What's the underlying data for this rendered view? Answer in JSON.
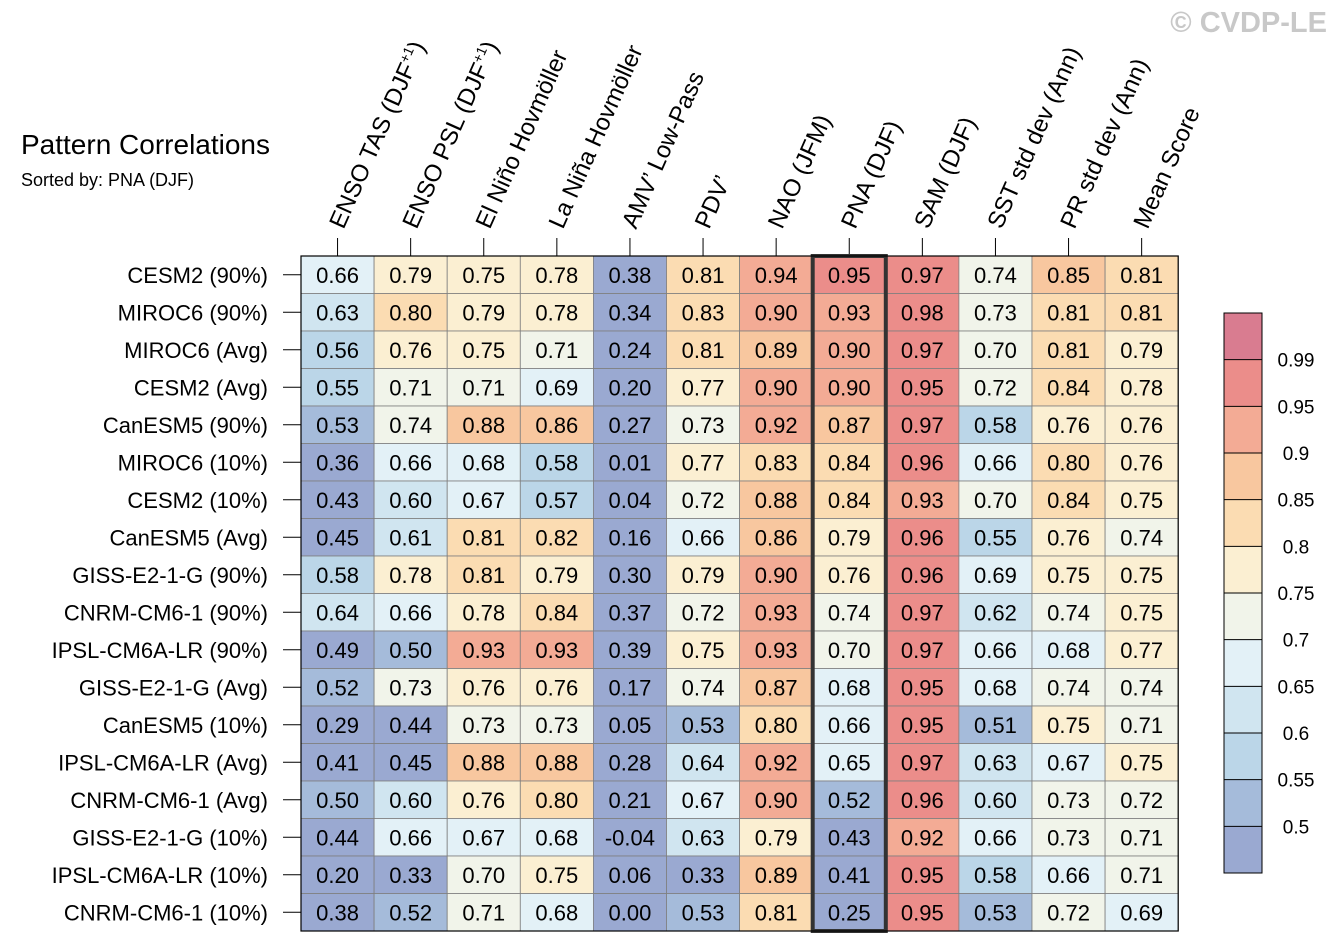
{
  "watermark": "© CVDP-LE",
  "chart_data": {
    "type": "heatmap",
    "title": "Pattern Correlations",
    "subtitle": "Sorted by: PNA (DJF)",
    "highlighted_column": "PNA (DJF)",
    "columns": [
      {
        "label": "ENSO TAS (DJF",
        "sup": "+1",
        "tail": ")"
      },
      {
        "label": "ENSO PSL (DJF",
        "sup": "+1",
        "tail": ")"
      },
      {
        "label": "El Niño Hovmöller"
      },
      {
        "label": "La Niña Hovmöller"
      },
      {
        "label": "AMV’ Low-Pass"
      },
      {
        "label": "PDV’"
      },
      {
        "label": "NAO (JFM)"
      },
      {
        "label": "PNA (DJF)"
      },
      {
        "label": "SAM (DJF)"
      },
      {
        "label": "SST std dev (Ann)"
      },
      {
        "label": "PR std dev (Ann)"
      },
      {
        "label": "Mean Score"
      }
    ],
    "rows": [
      "CESM2 (90%)",
      "MIROC6 (90%)",
      "MIROC6 (Avg)",
      "CESM2 (Avg)",
      "CanESM5 (90%)",
      "MIROC6 (10%)",
      "CESM2 (10%)",
      "CanESM5 (Avg)",
      "GISS-E2-1-G (90%)",
      "CNRM-CM6-1 (90%)",
      "IPSL-CM6A-LR (90%)",
      "GISS-E2-1-G (Avg)",
      "CanESM5 (10%)",
      "IPSL-CM6A-LR (Avg)",
      "CNRM-CM6-1 (Avg)",
      "GISS-E2-1-G (10%)",
      "IPSL-CM6A-LR (10%)",
      "CNRM-CM6-1 (10%)"
    ],
    "values": [
      [
        "0.66",
        "0.79",
        "0.75",
        "0.78",
        "0.38",
        "0.81",
        "0.94",
        "0.95",
        "0.97",
        "0.74",
        "0.85",
        "0.81"
      ],
      [
        "0.63",
        "0.80",
        "0.79",
        "0.78",
        "0.34",
        "0.83",
        "0.90",
        "0.93",
        "0.98",
        "0.73",
        "0.81",
        "0.81"
      ],
      [
        "0.56",
        "0.76",
        "0.75",
        "0.71",
        "0.24",
        "0.81",
        "0.89",
        "0.90",
        "0.97",
        "0.70",
        "0.81",
        "0.79"
      ],
      [
        "0.55",
        "0.71",
        "0.71",
        "0.69",
        "0.20",
        "0.77",
        "0.90",
        "0.90",
        "0.95",
        "0.72",
        "0.84",
        "0.78"
      ],
      [
        "0.53",
        "0.74",
        "0.88",
        "0.86",
        "0.27",
        "0.73",
        "0.92",
        "0.87",
        "0.97",
        "0.58",
        "0.76",
        "0.76"
      ],
      [
        "0.36",
        "0.66",
        "0.68",
        "0.58",
        "0.01",
        "0.77",
        "0.83",
        "0.84",
        "0.96",
        "0.66",
        "0.80",
        "0.76"
      ],
      [
        "0.43",
        "0.60",
        "0.67",
        "0.57",
        "0.04",
        "0.72",
        "0.88",
        "0.84",
        "0.93",
        "0.70",
        "0.84",
        "0.75"
      ],
      [
        "0.45",
        "0.61",
        "0.81",
        "0.82",
        "0.16",
        "0.66",
        "0.86",
        "0.79",
        "0.96",
        "0.55",
        "0.76",
        "0.74"
      ],
      [
        "0.58",
        "0.78",
        "0.81",
        "0.79",
        "0.30",
        "0.79",
        "0.90",
        "0.76",
        "0.96",
        "0.69",
        "0.75",
        "0.75"
      ],
      [
        "0.64",
        "0.66",
        "0.78",
        "0.84",
        "0.37",
        "0.72",
        "0.93",
        "0.74",
        "0.97",
        "0.62",
        "0.74",
        "0.75"
      ],
      [
        "0.49",
        "0.50",
        "0.93",
        "0.93",
        "0.39",
        "0.75",
        "0.93",
        "0.70",
        "0.97",
        "0.66",
        "0.68",
        "0.77"
      ],
      [
        "0.52",
        "0.73",
        "0.76",
        "0.76",
        "0.17",
        "0.74",
        "0.87",
        "0.68",
        "0.95",
        "0.68",
        "0.74",
        "0.74"
      ],
      [
        "0.29",
        "0.44",
        "0.73",
        "0.73",
        "0.05",
        "0.53",
        "0.80",
        "0.66",
        "0.95",
        "0.51",
        "0.75",
        "0.71"
      ],
      [
        "0.41",
        "0.45",
        "0.88",
        "0.88",
        "0.28",
        "0.64",
        "0.92",
        "0.65",
        "0.97",
        "0.63",
        "0.67",
        "0.75"
      ],
      [
        "0.50",
        "0.60",
        "0.76",
        "0.80",
        "0.21",
        "0.67",
        "0.90",
        "0.52",
        "0.96",
        "0.60",
        "0.73",
        "0.72"
      ],
      [
        "0.44",
        "0.66",
        "0.67",
        "0.68",
        "-0.04",
        "0.63",
        "0.79",
        "0.43",
        "0.92",
        "0.66",
        "0.73",
        "0.71"
      ],
      [
        "0.20",
        "0.33",
        "0.70",
        "0.75",
        "0.06",
        "0.33",
        "0.89",
        "0.41",
        "0.95",
        "0.58",
        "0.66",
        "0.71"
      ],
      [
        "0.38",
        "0.52",
        "0.71",
        "0.68",
        "0.00",
        "0.53",
        "0.81",
        "0.25",
        "0.95",
        "0.53",
        "0.72",
        "0.69"
      ]
    ],
    "colorbar": {
      "thresholds": [
        0.5,
        0.55,
        0.6,
        0.65,
        0.7,
        0.75,
        0.8,
        0.85,
        0.9,
        0.95,
        0.99
      ],
      "labels": [
        "0.5",
        "0.55",
        "0.6",
        "0.65",
        "0.7",
        "0.75",
        "0.8",
        "0.85",
        "0.9",
        "0.95",
        "0.99"
      ],
      "colors": [
        "#9aa9d1",
        "#a5bbda",
        "#bbd6e8",
        "#d0e5f0",
        "#e3f1f7",
        "#f1f4ea",
        "#fbefd2",
        "#fbdcb2",
        "#f8c79f",
        "#f3ab95",
        "#eb8d8a",
        "#d97c90"
      ]
    }
  }
}
